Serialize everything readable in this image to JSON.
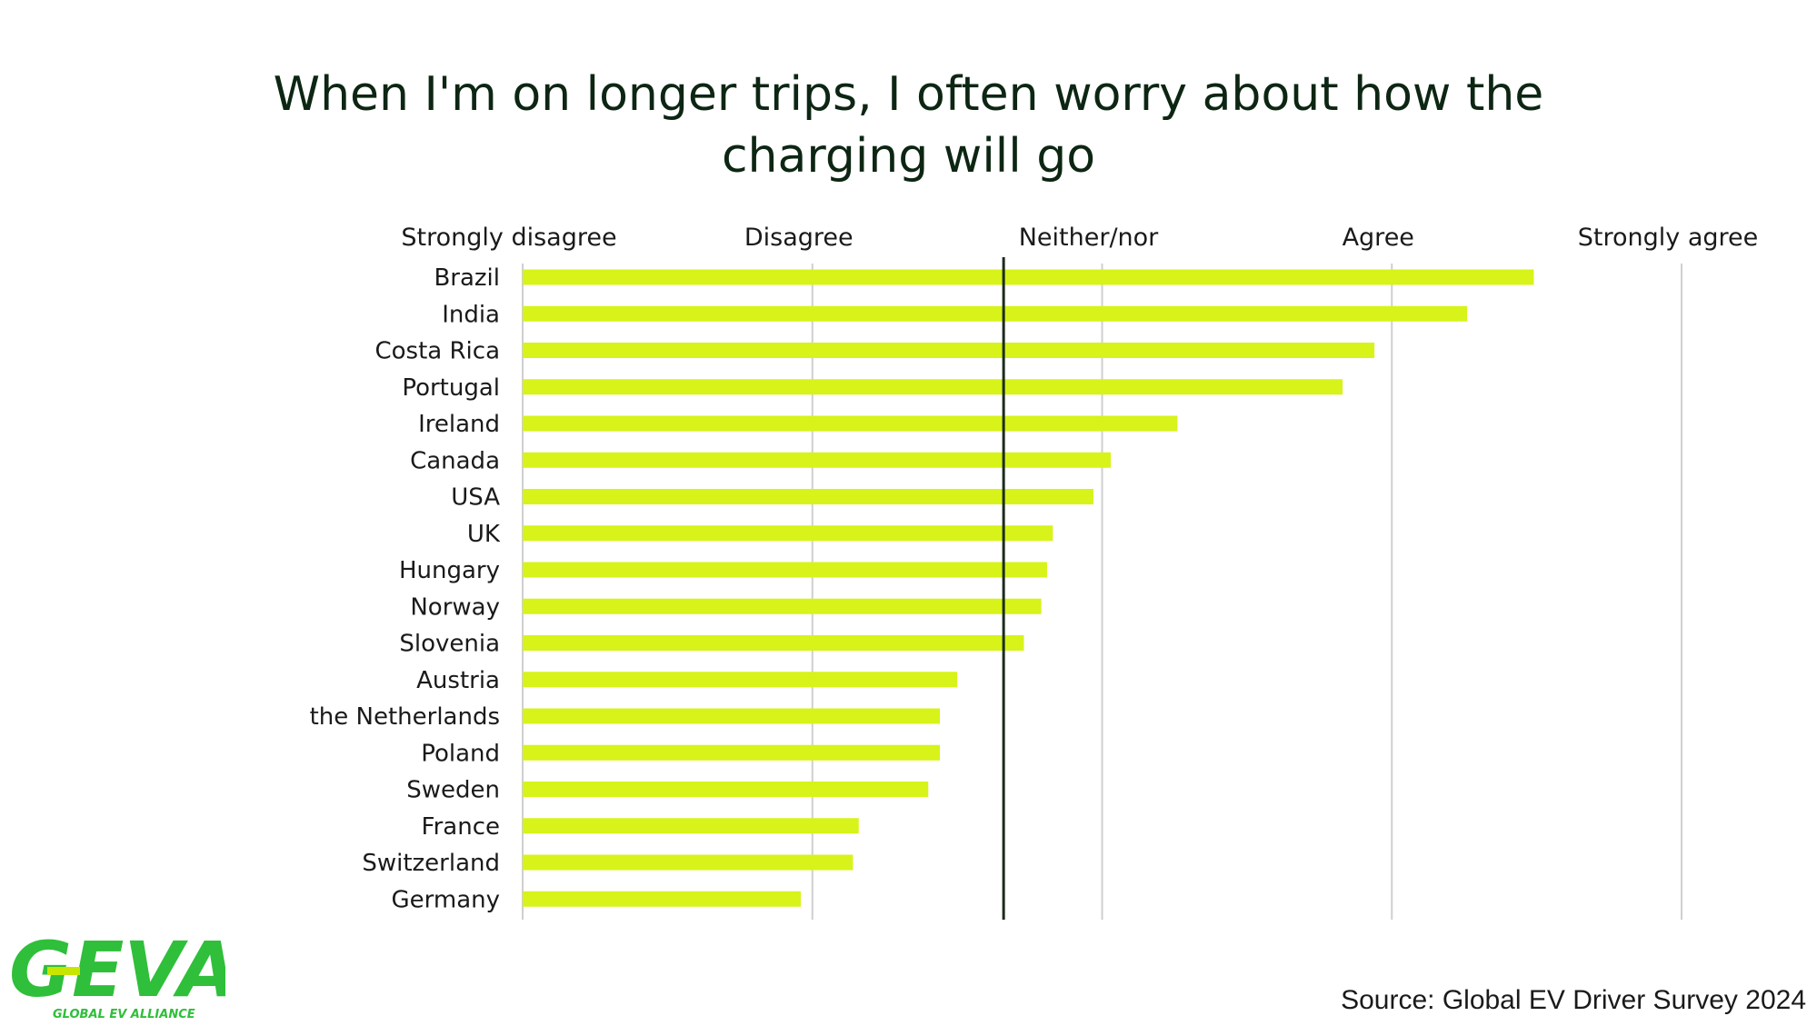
{
  "chart_data": {
    "type": "bar",
    "orientation": "horizontal",
    "title_lines": [
      "When I'm on longer trips, I often worry about how the",
      "charging will go"
    ],
    "scale_labels": [
      "Strongly disagree",
      "Disagree",
      "Neither/nor",
      "Agree",
      "Strongly agree"
    ],
    "xlim": [
      1,
      5
    ],
    "reference_line": 2.66,
    "categories": [
      "Brazil",
      "India",
      "Costa Rica",
      "Portugal",
      "Ireland",
      "Canada",
      "USA",
      "UK",
      "Hungary",
      "Norway",
      "Slovenia",
      "Austria",
      "the Netherlands",
      "Poland",
      "Sweden",
      "France",
      "Switzerland",
      "Germany"
    ],
    "values": [
      4.49,
      4.26,
      3.94,
      3.83,
      3.26,
      3.03,
      2.97,
      2.83,
      2.81,
      2.79,
      2.73,
      2.5,
      2.44,
      2.44,
      2.4,
      2.16,
      2.14,
      1.96
    ],
    "bar_color": "#d7f319",
    "grid_color": "#cfcfcf",
    "reference_color": "#1c2b1c"
  },
  "source": "Source: Global EV Driver Survey 2024",
  "logo": {
    "wordmark": "GEVA",
    "tagline": "GLOBAL EV ALLIANCE",
    "color": "#2fbf3a",
    "accent": "#c8e600"
  }
}
